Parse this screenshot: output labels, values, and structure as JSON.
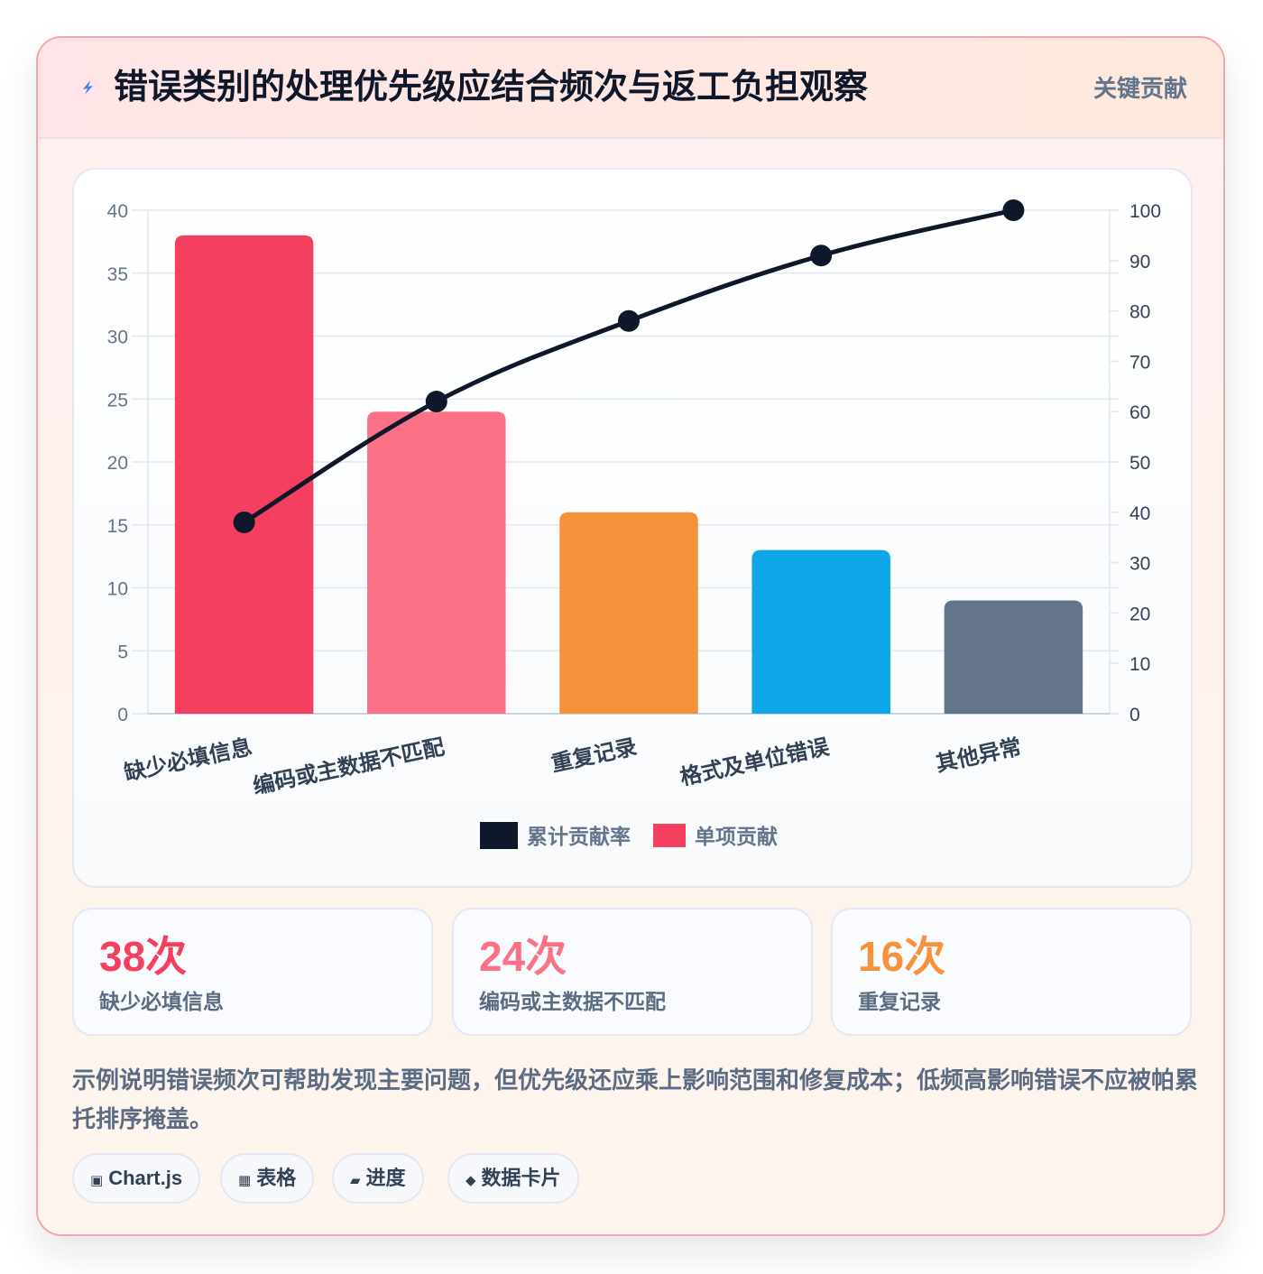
{
  "header": {
    "icon": "lightning-bolt-icon",
    "title": "错误类别的处理优先级应结合频次与返工负担观察",
    "badge": "关键贡献"
  },
  "chart_data": {
    "type": "bar",
    "categories": [
      "缺少必填信息",
      "编码或主数据不匹配",
      "重复记录",
      "格式及单位错误",
      "其他异常"
    ],
    "series": [
      {
        "name": "单项贡献",
        "type": "bar",
        "axis": "left",
        "values": [
          38,
          24,
          16,
          13,
          9
        ],
        "colors": [
          "#f43f5e",
          "#fb7185",
          "#f7923c",
          "#0ea5e9",
          "#64748b"
        ]
      },
      {
        "name": "累计贡献率",
        "type": "line",
        "axis": "right",
        "values": [
          38,
          62,
          78,
          91,
          100
        ],
        "color": "#0f172a"
      }
    ],
    "y_left": {
      "min": 0,
      "max": 40,
      "ticks": [
        0,
        5,
        10,
        15,
        20,
        25,
        30,
        35,
        40
      ]
    },
    "y_right": {
      "min": 0,
      "max": 100,
      "ticks": [
        0,
        10,
        20,
        30,
        40,
        50,
        60,
        70,
        80,
        90,
        100
      ]
    },
    "legend": {
      "position": "bottom",
      "items": [
        "累计贡献率",
        "单项贡献"
      ]
    },
    "grid": true
  },
  "stats": [
    {
      "value": "38次",
      "label": "缺少必填信息",
      "color": "#f43f5e"
    },
    {
      "value": "24次",
      "label": "编码或主数据不匹配",
      "color": "#fb7185"
    },
    {
      "value": "16次",
      "label": "重复记录",
      "color": "#f7923c"
    }
  ],
  "note": "示例说明错误频次可帮助发现主要问题，但优先级还应乘上影响范围和修复成本；低频高影响错误不应被帕累托排序掩盖。",
  "tags": [
    {
      "icon": "chart-icon",
      "glyph": "▣",
      "label": "Chart.js"
    },
    {
      "icon": "table-icon",
      "glyph": "▦",
      "label": "表格"
    },
    {
      "icon": "progress-icon",
      "glyph": "▰",
      "label": "进度"
    },
    {
      "icon": "data-card-icon",
      "glyph": "◆",
      "label": "数据卡片"
    }
  ]
}
